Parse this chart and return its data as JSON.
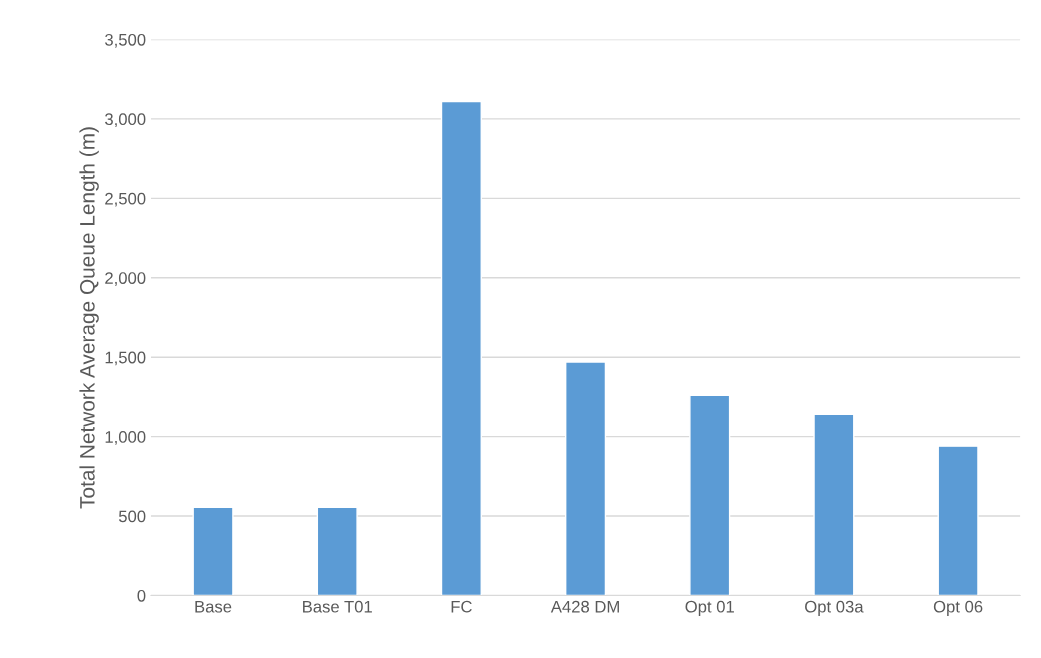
{
  "chart_data": {
    "type": "bar",
    "ylabel": "Total Network Average Queue Length (m)",
    "categories": [
      "Base",
      "Base T01",
      "FC",
      "A428 DM",
      "Opt 01",
      "Opt 03a",
      "Opt 06"
    ],
    "values": [
      555,
      555,
      3110,
      1470,
      1260,
      1140,
      940
    ],
    "color": "#5b9bd5",
    "ylim": [
      0,
      3500
    ],
    "yticks": [
      {
        "value": 0,
        "label": "0"
      },
      {
        "value": 500,
        "label": "500"
      },
      {
        "value": 1000,
        "label": "1,000"
      },
      {
        "value": 1500,
        "label": "1,500"
      },
      {
        "value": 2000,
        "label": "2,000"
      },
      {
        "value": 2500,
        "label": "2,500"
      },
      {
        "value": 3000,
        "label": "3,000"
      },
      {
        "value": 3500,
        "label": "3,500"
      }
    ],
    "grid": "y"
  }
}
